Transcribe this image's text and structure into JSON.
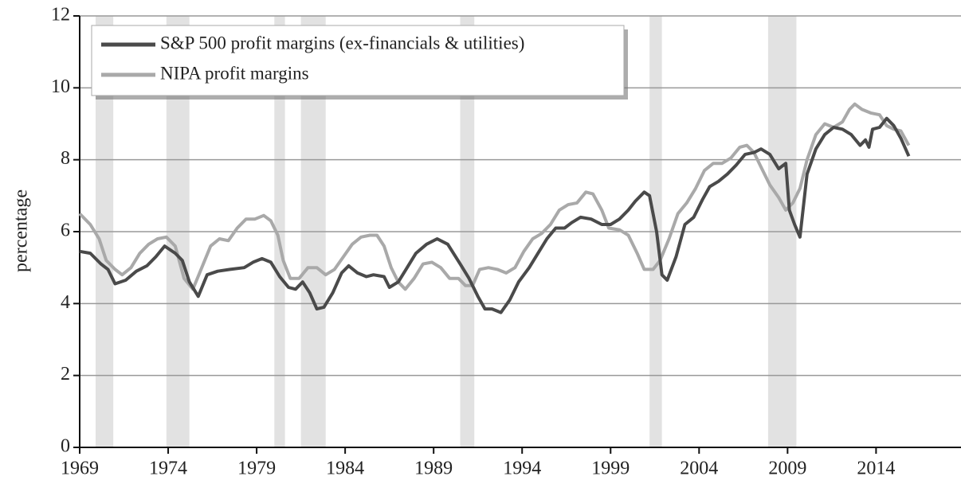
{
  "chart_data": {
    "type": "line",
    "ylabel": "percentage",
    "xlim": [
      1969,
      2018.8
    ],
    "ylim": [
      0,
      12
    ],
    "xticks": [
      1969,
      1974,
      1979,
      1984,
      1989,
      1994,
      1999,
      2004,
      2009,
      2014
    ],
    "yticks": [
      0,
      2,
      4,
      6,
      8,
      10,
      12
    ],
    "grid": true,
    "legend": "top-left",
    "recessions": [
      [
        1969.9,
        1970.9
      ],
      [
        1973.9,
        1975.2
      ],
      [
        1980.0,
        1980.6
      ],
      [
        1981.5,
        1982.9
      ],
      [
        1990.5,
        1991.3
      ],
      [
        2001.2,
        2001.9
      ],
      [
        2007.9,
        2009.5
      ]
    ],
    "recession_color": "#e2e2e2",
    "series": [
      {
        "name": "S&P 500 profit margins (ex-financials & utilities)",
        "color": "#4a4a4a",
        "x": [
          1969,
          1969.6,
          1970.2,
          1970.6,
          1971.0,
          1971.6,
          1972.2,
          1972.8,
          1973.3,
          1973.8,
          1974.4,
          1974.8,
          1975.2,
          1975.7,
          1976.2,
          1976.8,
          1977.5,
          1978.3,
          1978.8,
          1979.3,
          1979.8,
          1980.3,
          1980.8,
          1981.2,
          1981.6,
          1982.0,
          1982.4,
          1982.8,
          1983.3,
          1983.8,
          1984.2,
          1984.7,
          1985.2,
          1985.6,
          1986.2,
          1986.5,
          1987.0,
          1987.5,
          1988.0,
          1988.6,
          1989.2,
          1989.8,
          1990.5,
          1991.0,
          1991.5,
          1991.9,
          1992.3,
          1992.8,
          1993.3,
          1993.8,
          1994.4,
          1994.9,
          1995.4,
          1995.9,
          1996.4,
          1996.8,
          1997.3,
          1997.9,
          1998.5,
          1999.0,
          1999.5,
          2000.0,
          2000.4,
          2000.9,
          2001.2,
          2001.6,
          2001.9,
          2002.2,
          2002.7,
          2003.2,
          2003.7,
          2004.2,
          2004.6,
          2005.1,
          2005.6,
          2006.1,
          2006.6,
          2007.1,
          2007.5,
          2008.0,
          2008.5,
          2008.9,
          2009.1,
          2009.4,
          2009.7,
          2010.1,
          2010.6,
          2011.1,
          2011.6,
          2012.1,
          2012.6,
          2013.1,
          2013.4,
          2013.6,
          2013.8,
          2014.2,
          2014.6,
          2015.0,
          2015.4,
          2015.85
        ],
        "values": [
          5.45,
          5.4,
          5.1,
          4.95,
          4.55,
          4.65,
          4.9,
          5.05,
          5.3,
          5.6,
          5.4,
          5.2,
          4.6,
          4.2,
          4.8,
          4.9,
          4.95,
          5.0,
          5.15,
          5.25,
          5.15,
          4.75,
          4.45,
          4.4,
          4.6,
          4.3,
          3.85,
          3.9,
          4.3,
          4.85,
          5.05,
          4.85,
          4.75,
          4.8,
          4.75,
          4.45,
          4.6,
          5.0,
          5.4,
          5.65,
          5.8,
          5.65,
          5.1,
          4.7,
          4.2,
          3.85,
          3.85,
          3.75,
          4.1,
          4.6,
          5.0,
          5.4,
          5.8,
          6.1,
          6.1,
          6.25,
          6.4,
          6.35,
          6.2,
          6.2,
          6.35,
          6.6,
          6.85,
          7.1,
          7.0,
          6.0,
          4.8,
          4.65,
          5.3,
          6.2,
          6.4,
          6.9,
          7.25,
          7.4,
          7.6,
          7.85,
          8.15,
          8.2,
          8.3,
          8.15,
          7.75,
          7.9,
          6.6,
          6.2,
          5.85,
          7.6,
          8.3,
          8.7,
          8.9,
          8.85,
          8.7,
          8.4,
          8.55,
          8.35,
          8.85,
          8.9,
          9.15,
          8.95,
          8.6,
          8.1
        ]
      },
      {
        "name": "NIPA profit margins",
        "color": "#a9a9a9",
        "x": [
          1969,
          1969.6,
          1970.1,
          1970.5,
          1971.0,
          1971.4,
          1971.9,
          1972.4,
          1972.9,
          1973.4,
          1973.9,
          1974.4,
          1974.9,
          1975.4,
          1975.9,
          1976.4,
          1976.9,
          1977.4,
          1977.9,
          1978.4,
          1978.9,
          1979.4,
          1979.8,
          1980.2,
          1980.5,
          1980.9,
          1981.4,
          1981.9,
          1982.4,
          1982.9,
          1983.4,
          1983.9,
          1984.4,
          1984.9,
          1985.4,
          1985.8,
          1986.2,
          1986.6,
          1987.0,
          1987.4,
          1987.9,
          1988.4,
          1988.9,
          1989.4,
          1989.9,
          1990.4,
          1990.8,
          1991.2,
          1991.6,
          1992.1,
          1992.6,
          1993.1,
          1993.6,
          1994.1,
          1994.6,
          1995.1,
          1995.6,
          1996.1,
          1996.6,
          1997.1,
          1997.6,
          1998.0,
          1998.5,
          1998.9,
          1999.5,
          2000.0,
          2000.5,
          2000.9,
          2001.4,
          2001.8,
          2002.3,
          2002.8,
          2003.3,
          2003.8,
          2004.3,
          2004.8,
          2005.3,
          2005.8,
          2006.3,
          2006.7,
          2007.1,
          2007.5,
          2008.0,
          2008.5,
          2008.9,
          2009.3,
          2009.7,
          2010.1,
          2010.6,
          2011.1,
          2011.6,
          2012.1,
          2012.5,
          2012.8,
          2013.2,
          2013.7,
          2014.2,
          2014.6,
          2015.0,
          2015.4,
          2015.85
        ],
        "values": [
          6.5,
          6.2,
          5.8,
          5.2,
          4.95,
          4.8,
          5.0,
          5.4,
          5.65,
          5.8,
          5.85,
          5.6,
          4.7,
          4.4,
          5.0,
          5.6,
          5.8,
          5.75,
          6.1,
          6.35,
          6.35,
          6.45,
          6.3,
          5.9,
          5.2,
          4.7,
          4.7,
          5.0,
          5.0,
          4.8,
          4.95,
          5.3,
          5.65,
          5.85,
          5.9,
          5.9,
          5.6,
          5.0,
          4.6,
          4.4,
          4.7,
          5.1,
          5.15,
          5.0,
          4.7,
          4.7,
          4.5,
          4.5,
          4.95,
          5.0,
          4.95,
          4.85,
          5.0,
          5.45,
          5.8,
          5.95,
          6.2,
          6.6,
          6.75,
          6.8,
          7.1,
          7.05,
          6.6,
          6.1,
          6.05,
          5.9,
          5.4,
          4.95,
          4.95,
          5.2,
          5.8,
          6.5,
          6.8,
          7.2,
          7.7,
          7.9,
          7.9,
          8.05,
          8.35,
          8.4,
          8.2,
          7.8,
          7.3,
          6.95,
          6.6,
          6.8,
          7.2,
          8.0,
          8.7,
          9.0,
          8.9,
          9.05,
          9.4,
          9.55,
          9.4,
          9.3,
          9.25,
          8.95,
          8.85,
          8.8,
          8.4
        ]
      }
    ]
  }
}
